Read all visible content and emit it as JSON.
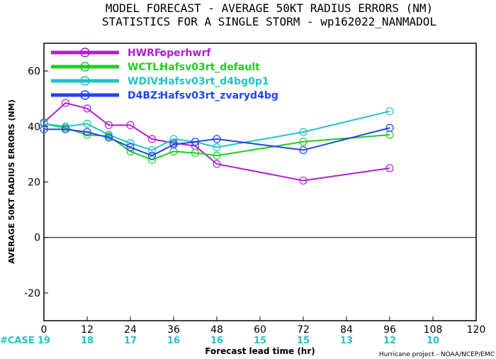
{
  "chart_data": {
    "type": "line",
    "title": "MODEL FORECAST - AVERAGE 50KT RADIUS ERRORS (NM)",
    "subtitle": "STATISTICS FOR A SINGLE STORM - wp162022_NANMADOL",
    "xlabel": "Forecast lead time (hr)",
    "ylabel": "AVERAGE 50KT RADIUS ERRORS (NM)",
    "xlim": [
      0,
      120
    ],
    "ylim": [
      -30,
      70
    ],
    "x_ticks": [
      0,
      12,
      24,
      36,
      48,
      60,
      72,
      84,
      96,
      108,
      120
    ],
    "y_ticks": [
      -20,
      0,
      20,
      40,
      60
    ],
    "zero_line": true,
    "legend_position": "top-left",
    "series": [
      {
        "name": "HWRF:",
        "label": "operhwrf",
        "color": "#b020d0",
        "x": [
          0,
          6,
          12,
          18,
          24,
          30,
          36,
          42,
          48,
          72,
          96
        ],
        "y": [
          41.5,
          48.5,
          46.5,
          40.5,
          40.5,
          35.5,
          34.0,
          33.0,
          26.5,
          20.5,
          25.0
        ]
      },
      {
        "name": "WCTL:",
        "label": "Hafsv03rt_default",
        "color": "#22cc22",
        "x": [
          0,
          6,
          12,
          18,
          24,
          30,
          36,
          42,
          48,
          72,
          96
        ],
        "y": [
          41.0,
          39.5,
          37.0,
          36.5,
          31.0,
          28.0,
          31.0,
          30.5,
          29.5,
          34.5,
          37.0
        ]
      },
      {
        "name": "WDIV:",
        "label": "Hafsv03rt_d4bg0p1",
        "color": "#22c4c4",
        "x": [
          0,
          6,
          12,
          18,
          24,
          30,
          36,
          42,
          48,
          72,
          96
        ],
        "y": [
          41.0,
          40.0,
          41.0,
          37.0,
          34.0,
          31.5,
          35.5,
          34.5,
          32.5,
          38.0,
          45.5
        ]
      },
      {
        "name": "D4BZ:",
        "label": "Hafsv03rt_zvaryd4bg",
        "color": "#2244ee",
        "x": [
          0,
          6,
          12,
          18,
          24,
          30,
          36,
          42,
          48,
          72,
          96
        ],
        "y": [
          39.0,
          39.0,
          38.0,
          36.0,
          32.5,
          29.5,
          33.5,
          34.5,
          35.5,
          31.5,
          39.5
        ]
      }
    ],
    "case_label": "#CASE",
    "case_counts": [
      {
        "x": 0,
        "count": "19"
      },
      {
        "x": 12,
        "count": "18"
      },
      {
        "x": 24,
        "count": "17"
      },
      {
        "x": 36,
        "count": "16"
      },
      {
        "x": 48,
        "count": "16"
      },
      {
        "x": 60,
        "count": "15"
      },
      {
        "x": 72,
        "count": "15"
      },
      {
        "x": 84,
        "count": "13"
      },
      {
        "x": 96,
        "count": "12"
      },
      {
        "x": 108,
        "count": "10"
      }
    ],
    "credit": "Hurricane project - NOAA/NCEP/EMC"
  }
}
